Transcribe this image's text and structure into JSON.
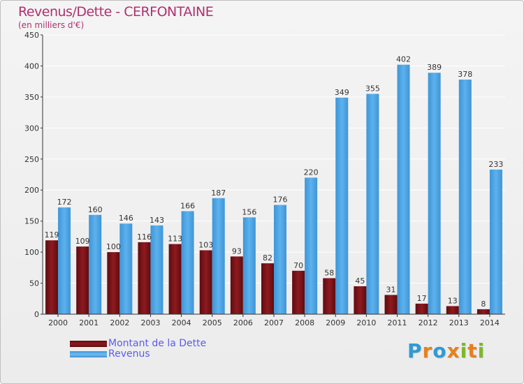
{
  "title": "Revenus/Dette - CERFONTAINE",
  "subtitle": "(en milliers d'€)",
  "legend": {
    "dette": "Montant de la Dette",
    "revenus": "Revenus"
  },
  "logo": {
    "letters": [
      "P",
      "r",
      "o",
      "x",
      "i",
      "t",
      "i"
    ],
    "colors": [
      "#2e9ad6",
      "#e5811f",
      "#2e9ad6",
      "#e5811f",
      "#7db828",
      "#e5811f",
      "#7db828"
    ]
  },
  "colors": {
    "dette": "#7a1116",
    "revenus": "#4aa3e4",
    "grid": "#ffffff",
    "axis": "#333333"
  },
  "chart_data": {
    "type": "bar",
    "title": "Revenus/Dette - CERFONTAINE",
    "ylabel": "(en milliers d'€)",
    "xlabel": "",
    "ylim": [
      0,
      450
    ],
    "yticks": [
      0,
      50,
      100,
      150,
      200,
      250,
      300,
      350,
      400,
      450
    ],
    "categories": [
      "2000",
      "2001",
      "2002",
      "2003",
      "2004",
      "2005",
      "2006",
      "2007",
      "2008",
      "2009",
      "2010",
      "2011",
      "2012",
      "2013",
      "2014"
    ],
    "series": [
      {
        "name": "Montant de la Dette",
        "key": "dette",
        "values": [
          119,
          109,
          100,
          116,
          113,
          103,
          93,
          82,
          70,
          58,
          45,
          31,
          17,
          13,
          8
        ]
      },
      {
        "name": "Revenus",
        "key": "revenus",
        "values": [
          172,
          160,
          146,
          143,
          166,
          187,
          156,
          176,
          220,
          349,
          355,
          402,
          389,
          378,
          233
        ]
      }
    ],
    "grid": true,
    "legend_position": "bottom-left"
  }
}
